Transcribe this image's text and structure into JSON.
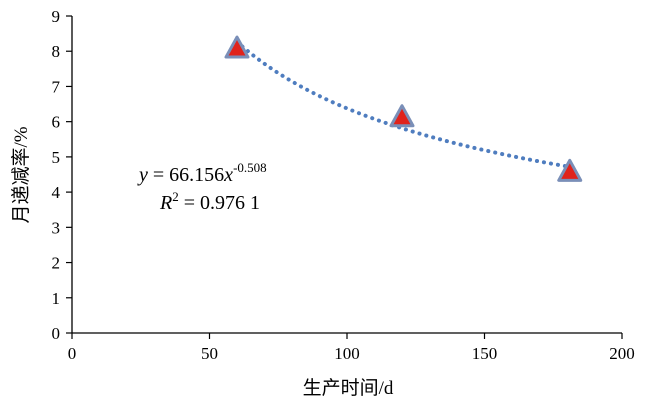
{
  "chart_data": {
    "type": "scatter",
    "xlabel": "生产时间/d",
    "ylabel": "月递减率/%",
    "xlim": [
      0,
      200
    ],
    "ylim": [
      0,
      9
    ],
    "x_ticks": [
      "0",
      "50",
      "100",
      "150",
      "200"
    ],
    "y_ticks": [
      "0",
      "1",
      "2",
      "3",
      "4",
      "5",
      "6",
      "7",
      "8",
      "9"
    ],
    "grid": false,
    "series": [
      {
        "x": [
          60,
          120,
          181
        ],
        "y": [
          8.05,
          6.1,
          4.55
        ],
        "marker": "triangle",
        "marker_fill": "#e0231c",
        "marker_stroke": "#7a8fb8"
      }
    ],
    "trendline": {
      "kind": "power",
      "a": 66.156,
      "b": -0.508,
      "color": "#4f7dbf",
      "style": "dotted"
    },
    "annotations": {
      "equation_y": "y",
      "equation_eq": " = 66.156",
      "equation_x": "x",
      "equation_exp": "-0.508",
      "r2_label": "R",
      "r2_sup": "2",
      "r2_value": " = 0.976 1"
    }
  }
}
